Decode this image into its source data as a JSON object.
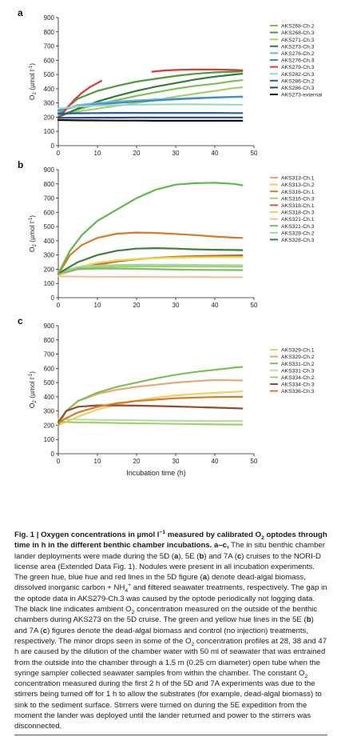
{
  "figure": {
    "xlabel": "Incubation time (h)",
    "ylabel_main": "O",
    "ylabel_sub": "2",
    "ylabel_unit": " (µmol  l",
    "ylabel_sup": "-1",
    "ylabel_close": ")"
  },
  "chart_data": [
    {
      "type": "line",
      "panel_label": "a",
      "xlim": [
        0,
        50
      ],
      "ylim": [
        0,
        900
      ],
      "xticks": [
        0,
        10,
        20,
        30,
        40,
        50
      ],
      "yticks": [
        0,
        100,
        200,
        300,
        400,
        500,
        600,
        700,
        800,
        900
      ],
      "xlabel": "",
      "ylabel": "O2 (µmol l-1)",
      "legend_position": "right",
      "series": [
        {
          "name": "AKS268-Ch.2",
          "color": "#7fbf5a",
          "x": [
            0,
            5,
            10,
            15,
            20,
            25,
            30,
            35,
            40,
            45,
            47
          ],
          "y": [
            210,
            255,
            290,
            320,
            350,
            375,
            400,
            420,
            435,
            455,
            460
          ]
        },
        {
          "name": "AKS268-Ch.3",
          "color": "#4f9a3a",
          "x": [
            0,
            5,
            10,
            15,
            20,
            25,
            30,
            35,
            40,
            45,
            47
          ],
          "y": [
            220,
            330,
            385,
            420,
            450,
            470,
            490,
            505,
            515,
            520,
            522
          ]
        },
        {
          "name": "AKS271-Ch.3",
          "color": "#a6cf6e",
          "x": [
            0,
            5,
            10,
            15,
            20,
            25,
            30,
            35,
            40,
            45,
            47
          ],
          "y": [
            215,
            240,
            260,
            280,
            300,
            320,
            345,
            365,
            385,
            405,
            410
          ]
        },
        {
          "name": "AKS273-Ch.3",
          "color": "#2f7d35",
          "x": [
            0,
            5,
            10,
            15,
            20,
            25,
            30,
            35,
            40,
            45,
            47
          ],
          "y": [
            200,
            260,
            310,
            350,
            385,
            415,
            440,
            465,
            485,
            500,
            505
          ]
        },
        {
          "name": "AKS276-Ch.2",
          "color": "#6fb7d9",
          "x": [
            0,
            5,
            10,
            15,
            20,
            25,
            30,
            35,
            40,
            45,
            47
          ],
          "y": [
            240,
            285,
            300,
            310,
            318,
            325,
            330,
            335,
            340,
            342,
            342
          ]
        },
        {
          "name": "AKS276-Ch.3",
          "color": "#3b8fc0",
          "x": [
            0,
            5,
            10,
            15,
            20,
            25,
            30,
            35,
            40,
            45,
            47
          ],
          "y": [
            250,
            275,
            290,
            300,
            310,
            318,
            325,
            332,
            338,
            343,
            345
          ]
        },
        {
          "name": "AKS279-Ch.3",
          "color": "#d93a3a",
          "x": [
            0,
            2,
            4,
            6,
            8,
            10,
            11,
            null,
            24,
            27,
            30,
            35,
            40,
            45,
            47
          ],
          "y": [
            195,
            255,
            320,
            370,
            410,
            440,
            455,
            null,
            520,
            528,
            532,
            535,
            535,
            532,
            530
          ]
        },
        {
          "name": "AKS282-Ch.3",
          "color": "#9fd6c8",
          "x": [
            0,
            5,
            10,
            15,
            20,
            25,
            30,
            35,
            40,
            45,
            47
          ],
          "y": [
            260,
            275,
            282,
            285,
            288,
            289,
            290,
            290,
            289,
            288,
            288
          ]
        },
        {
          "name": "AKS286-Ch.2",
          "color": "#1f5fa8",
          "x": [
            0,
            5,
            10,
            15,
            20,
            25,
            30,
            35,
            40,
            45,
            47
          ],
          "y": [
            225,
            228,
            229,
            230,
            230,
            230,
            230,
            230,
            230,
            229,
            229
          ]
        },
        {
          "name": "AKS286-Ch.3",
          "color": "#2c3e8f",
          "x": [
            0,
            5,
            10,
            15,
            20,
            25,
            30,
            35,
            40,
            45,
            47
          ],
          "y": [
            195,
            196,
            197,
            197,
            198,
            198,
            198,
            198,
            198,
            198,
            198
          ]
        },
        {
          "name": "AKS273-external",
          "color": "#111111",
          "x": [
            0,
            5,
            10,
            15,
            20,
            25,
            30,
            35,
            40,
            45,
            47
          ],
          "y": [
            180,
            178,
            177,
            176,
            176,
            175,
            175,
            175,
            175,
            175,
            175
          ]
        }
      ]
    },
    {
      "type": "line",
      "panel_label": "b",
      "xlim": [
        0,
        50
      ],
      "ylim": [
        0,
        900
      ],
      "xticks": [
        0,
        10,
        20,
        30,
        40,
        50
      ],
      "yticks": [
        0,
        100,
        200,
        300,
        400,
        500,
        600,
        700,
        800,
        900
      ],
      "xlabel": "",
      "ylabel": "O2 (µmol l-1)",
      "legend_position": "right",
      "series": [
        {
          "name": "AKS313-Ch.1",
          "color": "#e8a878",
          "x": [
            0,
            5,
            10,
            15,
            20,
            25,
            30,
            35,
            40,
            45,
            47
          ],
          "y": [
            160,
            200,
            230,
            255,
            270,
            280,
            285,
            290,
            292,
            293,
            293
          ]
        },
        {
          "name": "AKS313-Ch.2",
          "color": "#f0d060",
          "x": [
            0,
            5,
            10,
            15,
            20,
            25,
            30,
            35,
            40,
            45,
            47
          ],
          "y": [
            165,
            210,
            240,
            260,
            272,
            280,
            285,
            288,
            290,
            290,
            290
          ]
        },
        {
          "name": "AKS316-Ch.1",
          "color": "#d97a2a",
          "x": [
            0,
            3,
            6,
            10,
            15,
            20,
            25,
            30,
            35,
            40,
            45,
            47
          ],
          "y": [
            165,
            300,
            370,
            420,
            450,
            458,
            455,
            448,
            440,
            430,
            422,
            420
          ]
        },
        {
          "name": "AKS316-Ch.3",
          "color": "#a6cf6e",
          "x": [
            0,
            5,
            10,
            15,
            20,
            25,
            30,
            35,
            40,
            45,
            47
          ],
          "y": [
            170,
            205,
            215,
            218,
            220,
            220,
            219,
            218,
            218,
            217,
            217
          ]
        },
        {
          "name": "AKS318-Ch.1",
          "color": "#c9603a",
          "x": [
            0,
            5,
            10,
            15,
            20,
            25,
            30,
            35,
            40,
            45,
            47
          ],
          "y": [
            170,
            210,
            235,
            255,
            270,
            280,
            288,
            292,
            295,
            297,
            298
          ]
        },
        {
          "name": "AKS318-Ch.3",
          "color": "#e8d84a",
          "x": [
            0,
            5,
            10,
            15,
            20,
            25,
            30,
            35,
            40,
            45,
            47
          ],
          "y": [
            170,
            215,
            245,
            262,
            272,
            278,
            282,
            284,
            285,
            285,
            285
          ]
        },
        {
          "name": "AKS321-Ch.1",
          "color": "#f0c0a0",
          "x": [
            0,
            5,
            10,
            15,
            20,
            25,
            30,
            35,
            40,
            45,
            47
          ],
          "y": [
            150,
            148,
            147,
            146,
            146,
            145,
            145,
            145,
            144,
            144,
            144
          ]
        },
        {
          "name": "AKS321-Ch.3",
          "color": "#7fbf5a",
          "x": [
            0,
            5,
            10,
            15,
            20,
            25,
            30,
            35,
            40,
            45,
            47
          ],
          "y": [
            175,
            200,
            205,
            205,
            203,
            200,
            198,
            196,
            195,
            194,
            194
          ]
        },
        {
          "name": "AKS328-Ch.2",
          "color": "#9fd6a8",
          "x": [
            0,
            5,
            10,
            15,
            20,
            25,
            30,
            35,
            40,
            45,
            47
          ],
          "y": [
            180,
            215,
            225,
            230,
            232,
            232,
            231,
            230,
            229,
            228,
            228
          ]
        },
        {
          "name": "AKS328-Ch.3",
          "color": "#3f7f3a",
          "x": [
            0,
            5,
            10,
            15,
            20,
            25,
            30,
            35,
            40,
            45,
            47
          ],
          "y": [
            170,
            250,
            300,
            330,
            345,
            348,
            345,
            340,
            337,
            335,
            334
          ]
        },
        {
          "name": "",
          "color": "#5fb84a",
          "x": [
            0,
            3,
            6,
            10,
            15,
            20,
            25,
            30,
            35,
            40,
            45,
            47
          ],
          "y": [
            170,
            330,
            440,
            540,
            620,
            700,
            760,
            795,
            805,
            808,
            800,
            790
          ]
        }
      ]
    },
    {
      "type": "line",
      "panel_label": "c",
      "xlim": [
        0,
        50
      ],
      "ylim": [
        0,
        900
      ],
      "xticks": [
        0,
        10,
        20,
        30,
        40,
        50
      ],
      "yticks": [
        0,
        100,
        200,
        300,
        400,
        500,
        600,
        700,
        800,
        900
      ],
      "xlabel": "Incubation time (h)",
      "ylabel": "O2 (µmol l-1)",
      "legend_position": "right",
      "series": [
        {
          "name": "AKS329-Ch.1",
          "color": "#f0d060",
          "x": [
            0,
            2,
            5,
            10,
            15,
            20,
            25,
            30,
            35,
            40,
            45,
            47
          ],
          "y": [
            200,
            225,
            260,
            310,
            345,
            375,
            395,
            410,
            420,
            428,
            435,
            438
          ]
        },
        {
          "name": "AKS329-Ch.2",
          "color": "#e8a878",
          "x": [
            0,
            2,
            5,
            10,
            15,
            20,
            25,
            30,
            35,
            40,
            45,
            47
          ],
          "y": [
            200,
            300,
            370,
            420,
            450,
            470,
            485,
            500,
            510,
            518,
            516,
            515
          ]
        },
        {
          "name": "AKS331-Ch.2",
          "color": "#7fbf5a",
          "x": [
            0,
            2,
            5,
            10,
            15,
            20,
            25,
            30,
            35,
            40,
            45,
            47
          ],
          "y": [
            200,
            300,
            370,
            430,
            470,
            500,
            530,
            555,
            575,
            590,
            605,
            610
          ]
        },
        {
          "name": "AKS331-Ch.3",
          "color": "#b8dca8",
          "x": [
            0,
            5,
            10,
            15,
            20,
            25,
            30,
            35,
            40,
            45,
            47
          ],
          "y": [
            245,
            240,
            238,
            236,
            235,
            233,
            232,
            231,
            230,
            230,
            230
          ]
        },
        {
          "name": "AKS334-Ch.2",
          "color": "#a6cf6e",
          "x": [
            0,
            5,
            10,
            15,
            20,
            25,
            30,
            35,
            40,
            45,
            47
          ],
          "y": [
            225,
            220,
            218,
            216,
            214,
            212,
            210,
            208,
            206,
            205,
            205
          ]
        },
        {
          "name": "AKS334-Ch.3",
          "color": "#9a4a2a",
          "x": [
            0,
            2,
            5,
            10,
            15,
            20,
            25,
            30,
            35,
            40,
            45,
            47
          ],
          "y": [
            220,
            300,
            330,
            340,
            340,
            338,
            335,
            332,
            328,
            324,
            320,
            318
          ]
        },
        {
          "name": "AKS336-Ch.3",
          "color": "#d97a2a",
          "x": [
            0,
            2,
            5,
            10,
            15,
            20,
            25,
            30,
            35,
            40,
            45,
            47
          ],
          "y": [
            215,
            250,
            290,
            330,
            355,
            370,
            380,
            390,
            395,
            398,
            400,
            400
          ]
        }
      ]
    }
  ],
  "caption": {
    "fig_label": "Fig. 1 | ",
    "bold_title": "Oxygen concentrations in µmol  l",
    "bold_title_sup": "−1",
    "bold_title_mid": " measured by calibrated O",
    "bold_title_sub": "2",
    "bold_title_end": " optodes through time in h in the different benthic chamber incubations. a–c,",
    "body_1": " The in situ benthic chamber lander deployments were made during the 5D (",
    "body_1a": "a",
    "body_1b": "), 5E (",
    "body_1c": "b",
    "body_1d": ") and 7A (",
    "body_1e": "c",
    "body_1f": ") cruises to the NORI-D license area (Extended Data Fig. 1). Nodules were present in all incubation experiments. The green hue, blue hue and red lines in the 5D figure (",
    "body_1g": "a",
    "body_1h": ") denote dead-algal biomass, dissolved inorganic carbon + NH",
    "body_nh_sub": "4",
    "body_nh_sup": "+",
    "body_2": " and filtered seawater treatments, respectively. The gap in the optode data in AKS279-Ch.3 was caused by the optode periodically not logging data. The black line indicates ambient O",
    "body_2_sub": "2",
    "body_3": " concentration measured on the outside of the benthic chambers during AKS273 on the 5D cruise. The green and yellow hue lines in the 5E (",
    "body_3a": "b",
    "body_3b": ") and 7A (",
    "body_3c": "c",
    "body_3d": ") figures denote the dead-algal biomass and control (no injection) treatments, respectively. The minor drops seen in some of the O",
    "body_3_sub": "2",
    "body_4": " concentration profiles at 28, 38 and 47 h are caused by the dilution of the chamber water with 50 ml of seawater that was entrained from the outside into the chamber through a 1.5 m (0.25 cm diameter) open tube when the syringe sampler collected seawater samples from within the chamber. The constant O",
    "body_4_sub": "2",
    "body_5": " concentration measured during the first 2 h of the 5D and 7A experiments was due to the stirrers being turned off for 1 h to allow the substrates (for example, dead-algal biomass) to sink to the sediment surface. Stirrers were turned on during the 5E expedition from the moment the lander was deployed until the lander returned and power to the stirrers was disconnected."
  }
}
